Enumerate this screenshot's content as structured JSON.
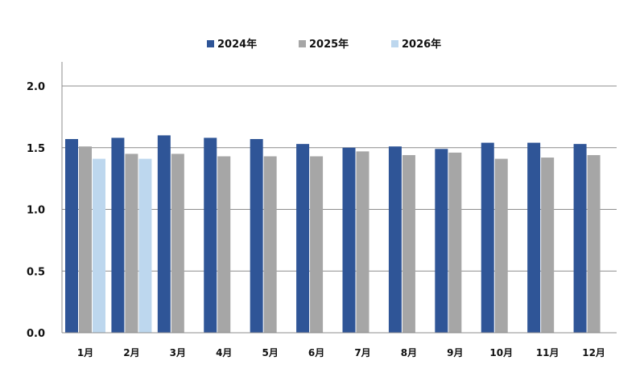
{
  "chart_data": {
    "type": "bar",
    "title": "",
    "xlabel": "",
    "ylabel": "",
    "ylim": [
      0,
      2.0
    ],
    "yticks": [
      "0.0",
      "0.5",
      "1.0",
      "1.5",
      "2.0"
    ],
    "grid": true,
    "legend_position": "top-center",
    "categories": [
      "1月",
      "2月",
      "3月",
      "4月",
      "5月",
      "6月",
      "7月",
      "8月",
      "9月",
      "10月",
      "11月",
      "12月"
    ],
    "series": [
      {
        "name": "2024年",
        "color": "#2f5597",
        "values": [
          1.57,
          1.58,
          1.6,
          1.58,
          1.57,
          1.53,
          1.5,
          1.51,
          1.49,
          1.54,
          1.54,
          1.53
        ]
      },
      {
        "name": "2025年",
        "color": "#a6a6a6",
        "values": [
          1.51,
          1.45,
          1.45,
          1.43,
          1.43,
          1.43,
          1.47,
          1.44,
          1.46,
          1.41,
          1.42,
          1.44
        ]
      },
      {
        "name": "2026年",
        "color": "#bdd7ee",
        "values": [
          1.41,
          1.41,
          null,
          null,
          null,
          null,
          null,
          null,
          null,
          null,
          null,
          null
        ]
      }
    ]
  }
}
